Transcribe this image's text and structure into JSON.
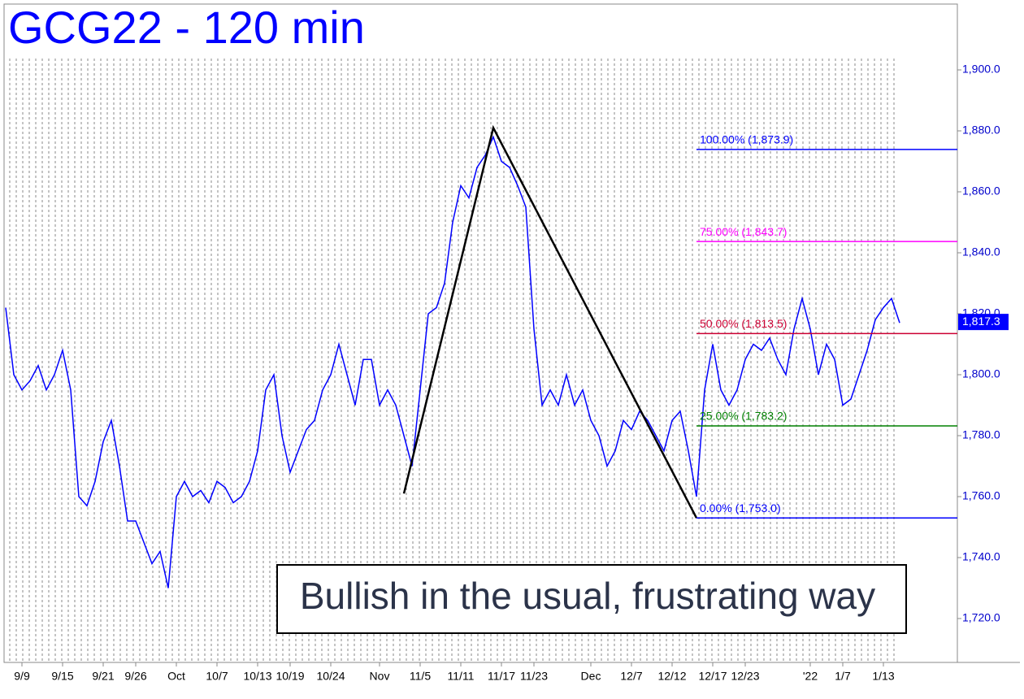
{
  "chart_data": {
    "type": "line",
    "title": "GCG22 - 120 min",
    "categories": [
      null,
      null,
      "9/9",
      null,
      null,
      null,
      null,
      "9/15",
      null,
      null,
      null,
      null,
      "9/21",
      null,
      null,
      null,
      "9/26",
      null,
      null,
      null,
      null,
      "Oct",
      null,
      null,
      null,
      null,
      "10/7",
      null,
      null,
      null,
      null,
      "10/13",
      null,
      null,
      null,
      "10/19",
      null,
      null,
      null,
      null,
      "10/24",
      null,
      null,
      null,
      null,
      null,
      "Nov",
      null,
      null,
      null,
      null,
      "11/5",
      null,
      null,
      null,
      null,
      "11/11",
      null,
      null,
      null,
      null,
      "11/17",
      null,
      null,
      null,
      "11/23",
      null,
      null,
      null,
      null,
      null,
      null,
      "Dec",
      null,
      null,
      null,
      null,
      "12/7",
      null,
      null,
      null,
      null,
      "12/12",
      null,
      null,
      null,
      null,
      "12/17",
      null,
      null,
      null,
      "12/23",
      null,
      null,
      null,
      null,
      null,
      null,
      null,
      "'22",
      null,
      null,
      null,
      "1/7",
      null,
      null,
      null,
      null,
      "1/13",
      null,
      null
    ],
    "series": [
      {
        "name": "GCG22",
        "color": "#0000ff",
        "values": [
          1822,
          1800,
          1795,
          1798,
          1803,
          1795,
          1800,
          1808,
          1795,
          1760,
          1757,
          1765,
          1778,
          1785,
          1770,
          1752,
          1752,
          1745,
          1738,
          1742,
          1730,
          1760,
          1765,
          1760,
          1762,
          1758,
          1765,
          1763,
          1758,
          1760,
          1765,
          1775,
          1795,
          1800,
          1780,
          1768,
          1775,
          1782,
          1785,
          1795,
          1800,
          1810,
          1800,
          1790,
          1805,
          1805,
          1790,
          1795,
          1790,
          1780,
          1770,
          1795,
          1820,
          1822,
          1830,
          1850,
          1862,
          1858,
          1868,
          1872,
          1878,
          1870,
          1868,
          1862,
          1855,
          1815,
          1790,
          1795,
          1790,
          1800,
          1790,
          1795,
          1785,
          1780,
          1770,
          1775,
          1785,
          1782,
          1788,
          1785,
          1780,
          1775,
          1785,
          1788,
          1775,
          1760,
          1795,
          1810,
          1795,
          1790,
          1795,
          1805,
          1810,
          1808,
          1812,
          1805,
          1800,
          1815,
          1825,
          1815,
          1800,
          1810,
          1805,
          1790,
          1792,
          1800,
          1808,
          1818,
          1822,
          1825,
          1817
        ]
      }
    ],
    "pivots": {
      "color": "#000000",
      "x": [
        49,
        60,
        85
      ],
      "values": [
        1761,
        1881,
        1753
      ]
    },
    "levels": [
      {
        "value": 1873.9,
        "label": "100.00% (1,873.9)",
        "color": "#0000ff"
      },
      {
        "value": 1843.7,
        "label": "75.00% (1,843.7)",
        "color": "#ff00ff"
      },
      {
        "value": 1813.5,
        "label": "50.00% (1,813.5)",
        "color": "#cc0033"
      },
      {
        "value": 1783.2,
        "label": "25.00% (1,783.2)",
        "color": "#008000"
      },
      {
        "value": 1753.0,
        "label": "0.00% (1,753.0)",
        "color": "#0000ff"
      }
    ],
    "last": {
      "value": 1817.3,
      "label": "1,817.3"
    },
    "annotation": "Bullish in the usual, frustrating way",
    "ylim": [
      1705.6,
      1921.6
    ],
    "yticks": [
      {
        "value": 1720,
        "label": "1,720.0"
      },
      {
        "value": 1740,
        "label": "1,740.0"
      },
      {
        "value": 1760,
        "label": "1,760.0"
      },
      {
        "value": 1780,
        "label": "1,780.0"
      },
      {
        "value": 1800,
        "label": "1,800.0"
      },
      {
        "value": 1820,
        "label": "1,820.0"
      },
      {
        "value": 1840,
        "label": "1,840.0"
      },
      {
        "value": 1860,
        "label": "1,860.0"
      },
      {
        "value": 1880,
        "label": "1,880.0"
      },
      {
        "value": 1900,
        "label": "1,900.0"
      }
    ]
  }
}
